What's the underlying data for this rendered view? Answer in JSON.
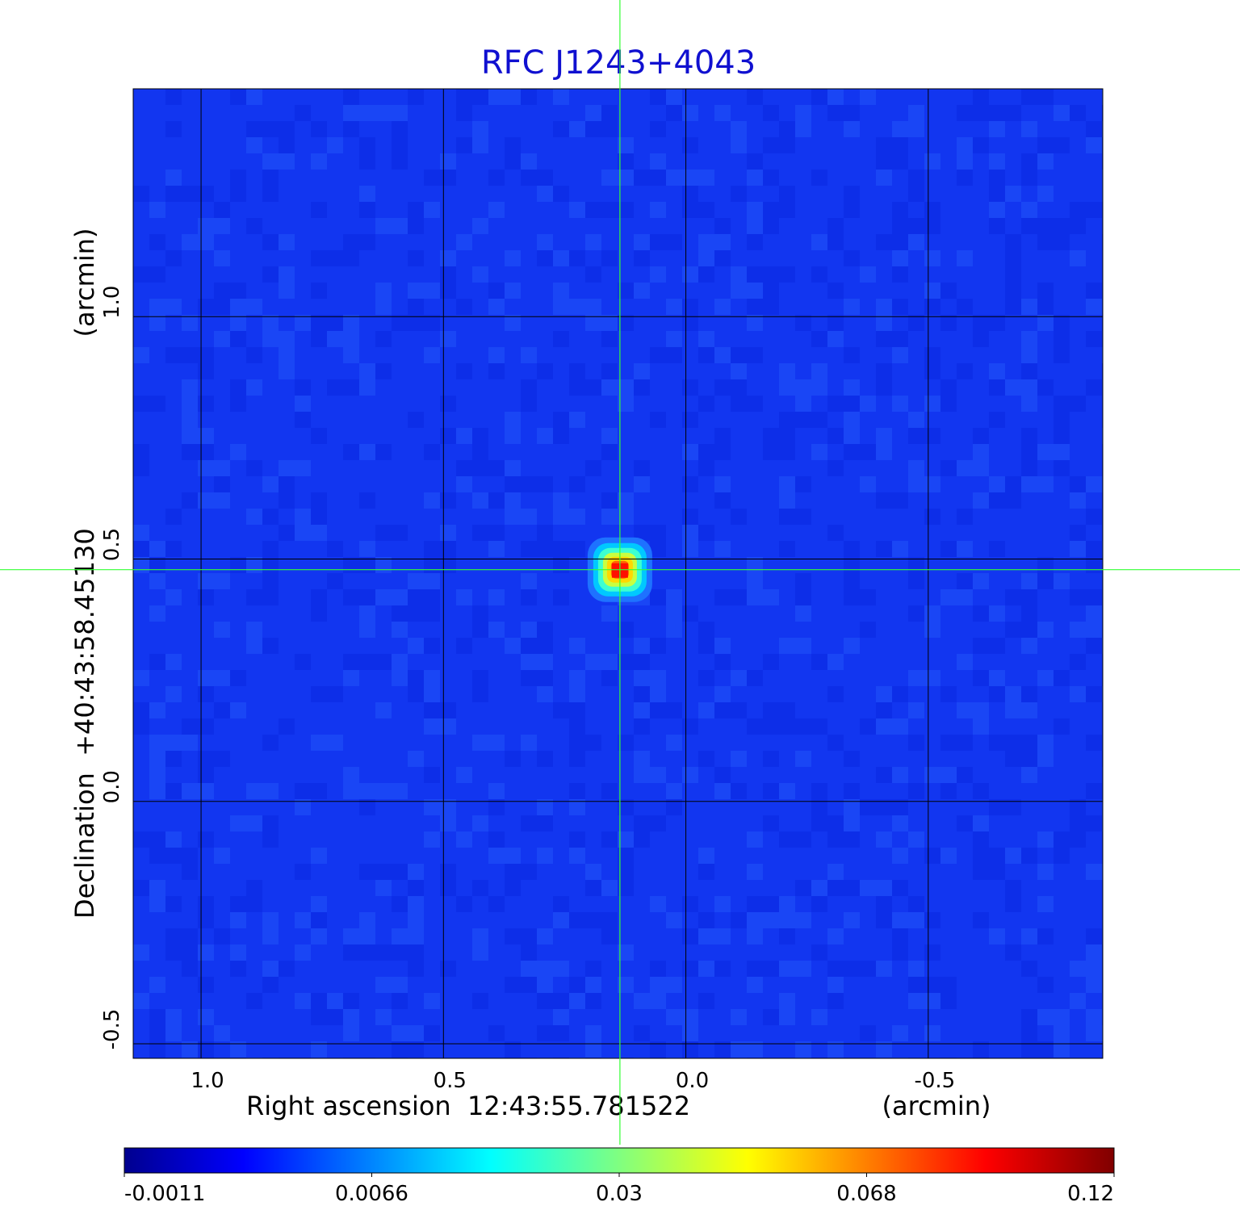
{
  "chart_data": {
    "type": "heatmap",
    "title": "RFC J1243+4043",
    "xlabel": "Right ascension  12:43:55.781522",
    "xlabel_unit": "(arcmin)",
    "ylabel": "Declination  +40:43:58.45130",
    "ylabel_unit": "(arcmin)",
    "x_ticks": [
      1.0,
      0.5,
      0.0,
      -0.5
    ],
    "x_tick_labels": [
      "1.0",
      "0.5",
      "0.0",
      "-0.5"
    ],
    "y_ticks": [
      1.0,
      0.5,
      0.0,
      -0.5
    ],
    "y_tick_labels": [
      "1.0",
      "0.5",
      "0.0",
      "-0.5"
    ],
    "xlim": [
      1.14,
      -0.86
    ],
    "ylim": [
      -0.53,
      1.47
    ],
    "grid": true,
    "crosshair": {
      "x": 0.136,
      "y": 0.478
    },
    "source_peak": {
      "x": 0.136,
      "y": 0.478,
      "value": 0.12
    },
    "colormap": "jet",
    "colorbar_ticks": [
      -0.0011,
      0.0066,
      0.03,
      0.068,
      0.12
    ],
    "colorbar_tick_labels": [
      "-0.0011",
      "0.0066",
      "0.03",
      "0.068",
      "0.12"
    ],
    "colorbar_range": [
      -0.0011,
      0.12
    ]
  },
  "colors": {
    "title": "#1010d0",
    "crosshair": "#33ff33",
    "grid": "#000000",
    "background_map": "#1236f0"
  }
}
